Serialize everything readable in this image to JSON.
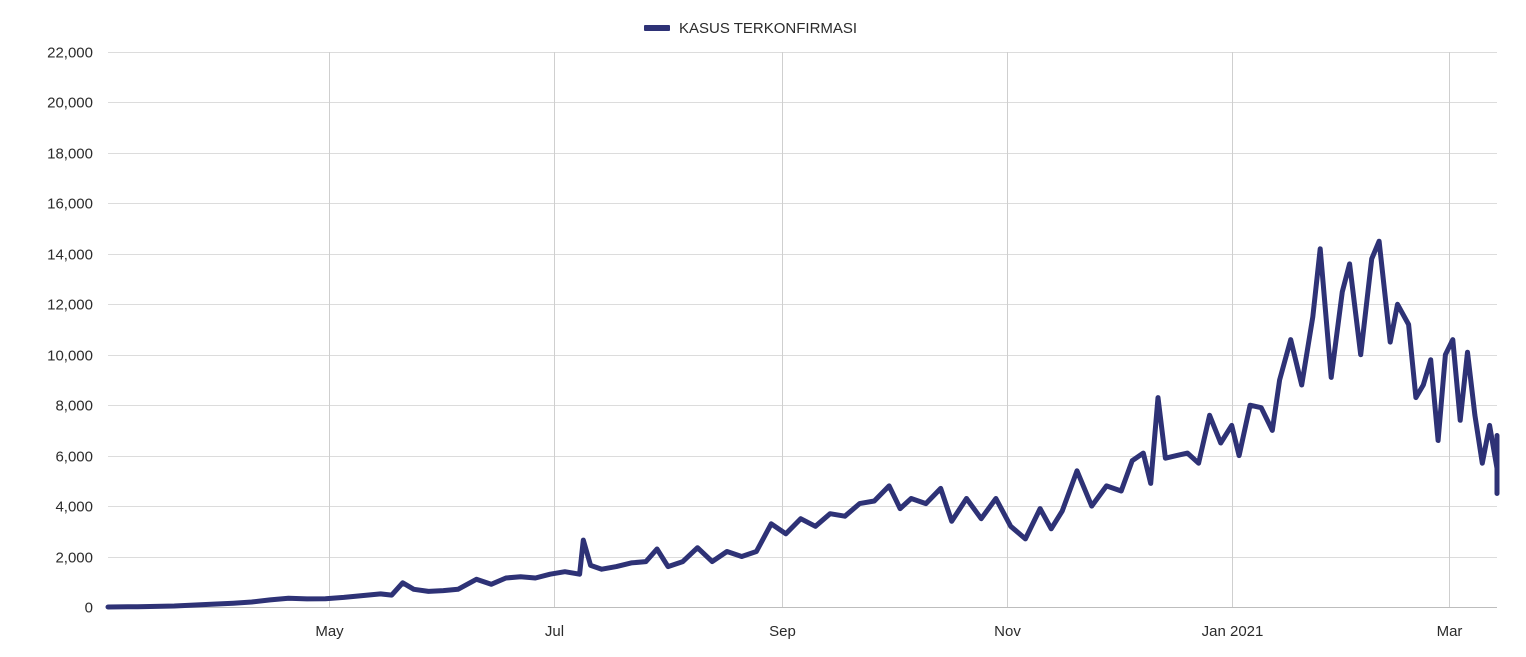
{
  "chart_data": {
    "type": "line",
    "title": "",
    "xlabel": "",
    "ylabel": "",
    "legend": {
      "placement": "top-center"
    },
    "grid": true,
    "x_range": [
      "2020-03-02",
      "2021-03-14"
    ],
    "ylim": [
      0,
      22000
    ],
    "y_ticks": [
      "0",
      "2,000",
      "4,000",
      "6,000",
      "8,000",
      "10,000",
      "12,000",
      "14,000",
      "16,000",
      "18,000",
      "20,000",
      "22,000"
    ],
    "x_ticks": [
      {
        "date": "2020-05-01",
        "label": "May"
      },
      {
        "date": "2020-07-01",
        "label": "Jul"
      },
      {
        "date": "2020-09-01",
        "label": "Sep"
      },
      {
        "date": "2020-11-01",
        "label": "Nov"
      },
      {
        "date": "2021-01-01",
        "label": "Jan 2021"
      },
      {
        "date": "2021-03-01",
        "label": "Mar"
      }
    ],
    "series": [
      {
        "name": "KASUS TERKONFIRMASI",
        "color": "#2e3276",
        "points": [
          [
            "2020-03-02",
            0
          ],
          [
            "2020-03-10",
            10
          ],
          [
            "2020-03-20",
            40
          ],
          [
            "2020-03-30",
            110
          ],
          [
            "2020-04-05",
            150
          ],
          [
            "2020-04-10",
            200
          ],
          [
            "2020-04-15",
            280
          ],
          [
            "2020-04-20",
            350
          ],
          [
            "2020-04-25",
            320
          ],
          [
            "2020-04-30",
            330
          ],
          [
            "2020-05-05",
            380
          ],
          [
            "2020-05-10",
            450
          ],
          [
            "2020-05-15",
            520
          ],
          [
            "2020-05-18",
            470
          ],
          [
            "2020-05-21",
            960
          ],
          [
            "2020-05-24",
            700
          ],
          [
            "2020-05-28",
            620
          ],
          [
            "2020-06-01",
            650
          ],
          [
            "2020-06-05",
            700
          ],
          [
            "2020-06-10",
            1100
          ],
          [
            "2020-06-14",
            900
          ],
          [
            "2020-06-18",
            1150
          ],
          [
            "2020-06-22",
            1200
          ],
          [
            "2020-06-26",
            1150
          ],
          [
            "2020-06-30",
            1300
          ],
          [
            "2020-07-04",
            1400
          ],
          [
            "2020-07-08",
            1300
          ],
          [
            "2020-07-09",
            2650
          ],
          [
            "2020-07-11",
            1650
          ],
          [
            "2020-07-14",
            1500
          ],
          [
            "2020-07-18",
            1600
          ],
          [
            "2020-07-22",
            1750
          ],
          [
            "2020-07-26",
            1800
          ],
          [
            "2020-07-29",
            2300
          ],
          [
            "2020-08-01",
            1600
          ],
          [
            "2020-08-05",
            1800
          ],
          [
            "2020-08-09",
            2350
          ],
          [
            "2020-08-13",
            1800
          ],
          [
            "2020-08-17",
            2200
          ],
          [
            "2020-08-21",
            2000
          ],
          [
            "2020-08-25",
            2200
          ],
          [
            "2020-08-29",
            3300
          ],
          [
            "2020-09-02",
            2900
          ],
          [
            "2020-09-06",
            3500
          ],
          [
            "2020-09-10",
            3200
          ],
          [
            "2020-09-14",
            3700
          ],
          [
            "2020-09-18",
            3600
          ],
          [
            "2020-09-22",
            4100
          ],
          [
            "2020-09-26",
            4200
          ],
          [
            "2020-09-30",
            4800
          ],
          [
            "2020-10-03",
            3900
          ],
          [
            "2020-10-06",
            4300
          ],
          [
            "2020-10-10",
            4100
          ],
          [
            "2020-10-14",
            4700
          ],
          [
            "2020-10-17",
            3400
          ],
          [
            "2020-10-21",
            4300
          ],
          [
            "2020-10-25",
            3500
          ],
          [
            "2020-10-29",
            4300
          ],
          [
            "2020-11-02",
            3200
          ],
          [
            "2020-11-06",
            2700
          ],
          [
            "2020-11-10",
            3900
          ],
          [
            "2020-11-13",
            3100
          ],
          [
            "2020-11-16",
            3800
          ],
          [
            "2020-11-20",
            5400
          ],
          [
            "2020-11-24",
            4000
          ],
          [
            "2020-11-28",
            4800
          ],
          [
            "2020-12-02",
            4600
          ],
          [
            "2020-12-05",
            5800
          ],
          [
            "2020-12-08",
            6100
          ],
          [
            "2020-12-10",
            4900
          ],
          [
            "2020-12-12",
            8300
          ],
          [
            "2020-12-14",
            5900
          ],
          [
            "2020-12-17",
            6000
          ],
          [
            "2020-12-20",
            6100
          ],
          [
            "2020-12-23",
            5700
          ],
          [
            "2020-12-26",
            7600
          ],
          [
            "2020-12-29",
            6500
          ],
          [
            "2021-01-01",
            7200
          ],
          [
            "2021-01-03",
            6000
          ],
          [
            "2021-01-06",
            8000
          ],
          [
            "2021-01-09",
            7900
          ],
          [
            "2021-01-12",
            7000
          ],
          [
            "2021-01-14",
            9000
          ],
          [
            "2021-01-17",
            10600
          ],
          [
            "2021-01-20",
            8800
          ],
          [
            "2021-01-23",
            11500
          ],
          [
            "2021-01-25",
            14200
          ],
          [
            "2021-01-28",
            9100
          ],
          [
            "2021-01-31",
            12500
          ],
          [
            "2021-02-02",
            13600
          ],
          [
            "2021-02-05",
            10000
          ],
          [
            "2021-02-08",
            13800
          ],
          [
            "2021-02-10",
            14500
          ],
          [
            "2021-02-13",
            10500
          ],
          [
            "2021-02-15",
            12000
          ],
          [
            "2021-02-18",
            11200
          ],
          [
            "2021-02-20",
            8300
          ],
          [
            "2021-02-22",
            8800
          ],
          [
            "2021-02-24",
            9800
          ],
          [
            "2021-02-26",
            6600
          ],
          [
            "2021-02-28",
            10000
          ],
          [
            "2021-03-02",
            10600
          ],
          [
            "2021-03-04",
            7400
          ],
          [
            "2021-03-06",
            10100
          ],
          [
            "2021-03-08",
            7600
          ],
          [
            "2021-03-10",
            5700
          ],
          [
            "2021-03-12",
            7200
          ],
          [
            "2021-03-14",
            5500
          ],
          [
            "2021-03-16",
            6800
          ],
          [
            "2021-03-18",
            4700
          ],
          [
            "2021-03-20",
            5600
          ],
          [
            "2021-03-22",
            6800
          ],
          [
            "2021-03-24",
            6200
          ],
          [
            "2021-03-26",
            4500
          ],
          [
            "2021-03-28",
            5600
          ],
          [
            "2021-03-30",
            5200
          ],
          [
            "2021-04-01",
            6100
          ],
          [
            "2021-04-03",
            5000
          ]
        ]
      }
    ]
  }
}
